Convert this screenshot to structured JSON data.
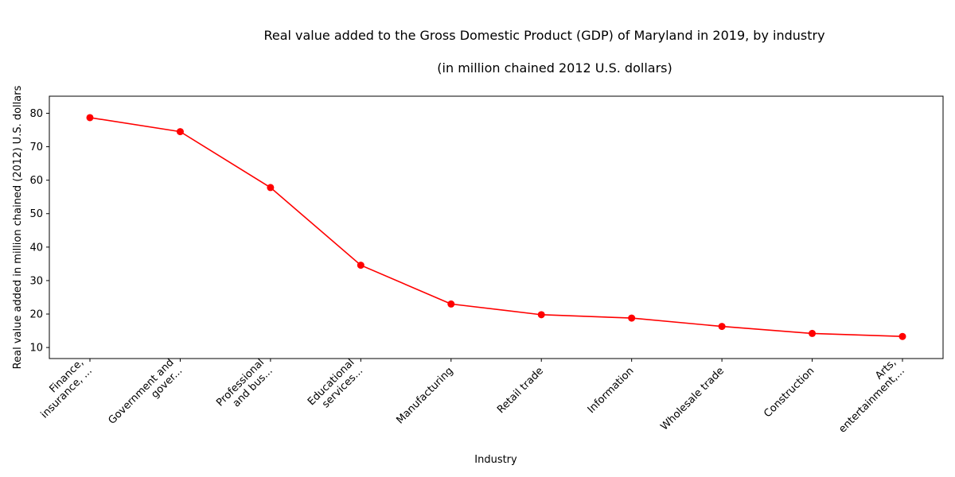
{
  "chart_data": {
    "type": "line",
    "title_line1": "Real value added to the Gross Domestic Product (GDP) of Maryland in 2019, by industry",
    "title_line2": "(in million chained 2012 U.S. dollars)",
    "xlabel": "Industry",
    "ylabel": "Real value added in million chained (2012) U.S. dollars",
    "categories": [
      [
        "Finance,",
        "insurance, ..."
      ],
      [
        "Government and",
        "gover..."
      ],
      [
        "Professional",
        "and bus..."
      ],
      [
        "Educational",
        "services..."
      ],
      [
        "Manufacturing"
      ],
      [
        "Retail trade"
      ],
      [
        "Information"
      ],
      [
        "Wholesale trade"
      ],
      [
        "Construction"
      ],
      [
        "Arts,",
        "entertainment,..."
      ]
    ],
    "values": [
      78.7,
      74.5,
      57.8,
      34.6,
      23.0,
      19.8,
      18.8,
      16.3,
      14.2,
      13.3
    ],
    "ylim": [
      6.7,
      85.1
    ],
    "yticks": [
      10,
      20,
      30,
      40,
      50,
      60,
      70,
      80
    ],
    "line_color": "#ff0000",
    "marker": "circle",
    "grid": false
  }
}
